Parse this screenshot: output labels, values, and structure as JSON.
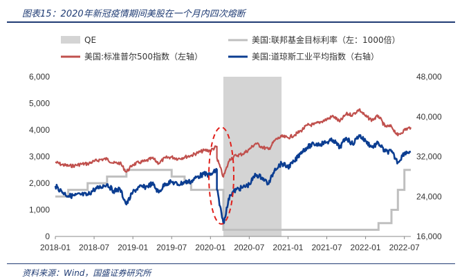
{
  "header": {
    "title": "图表15：2020年新冠疫情期间美股在一个月内四次熔断"
  },
  "footer": {
    "source": "资料来源：Wind，国盛证券研究所"
  },
  "colors": {
    "qe": "#d4d4d4",
    "fed_rate": "#bfbfbf",
    "spx": "#c0504d",
    "dji": "#0b3d91",
    "annotation": "#e0201b",
    "frame": "#1f3b73"
  },
  "chart_data": {
    "type": "line",
    "left_axis": {
      "min": 0,
      "max": 6000,
      "ticks": [
        "0",
        "1,000",
        "2,000",
        "3,000",
        "4,000",
        "5,000",
        "6,000"
      ]
    },
    "right_axis": {
      "min": 16000,
      "max": 48000,
      "ticks": [
        "16,000",
        "24,000",
        "32,000",
        "40,000",
        "48,000"
      ]
    },
    "x_axis": {
      "ticks": [
        "2018-01",
        "2018-07",
        "2019-01",
        "2019-07",
        "2020-01",
        "2020-07",
        "2021-01",
        "2021-07",
        "2022-01",
        "2022-07"
      ]
    },
    "legend": [
      {
        "key": "qe",
        "label": "QE"
      },
      {
        "key": "fed_rate",
        "label": "美国:联邦基金目标利率（左：1000倍）"
      },
      {
        "key": "spx",
        "label": "美国:标准普尔500指数（左轴）"
      },
      {
        "key": "dji",
        "label": "美国:道琼斯工业平均指数（右轴）"
      }
    ],
    "qe_period": {
      "start": "2020-03",
      "end": "2020-12"
    },
    "annotation": {
      "shape": "ellipse",
      "style": "dashed",
      "date": "2020-03",
      "note": "four circuit breakers"
    },
    "series": [
      {
        "key": "fed_rate",
        "name": "美国:联邦基金目标利率（左：1000倍）",
        "axis": "left",
        "points": [
          [
            "2018-01",
            1500
          ],
          [
            "2018-03",
            1500
          ],
          [
            "2018-03",
            1750
          ],
          [
            "2018-06",
            1750
          ],
          [
            "2018-06",
            2000
          ],
          [
            "2018-09",
            2000
          ],
          [
            "2018-09",
            2250
          ],
          [
            "2018-12",
            2250
          ],
          [
            "2018-12",
            2500
          ],
          [
            "2019-07",
            2500
          ],
          [
            "2019-07",
            2250
          ],
          [
            "2019-09",
            2250
          ],
          [
            "2019-09",
            2000
          ],
          [
            "2019-10",
            2000
          ],
          [
            "2019-10",
            1750
          ],
          [
            "2020-03",
            1750
          ],
          [
            "2020-03",
            250
          ],
          [
            "2022-03",
            250
          ],
          [
            "2022-03",
            500
          ],
          [
            "2022-05",
            500
          ],
          [
            "2022-05",
            1000
          ],
          [
            "2022-06",
            1000
          ],
          [
            "2022-06",
            1750
          ],
          [
            "2022-07",
            1750
          ],
          [
            "2022-07",
            2500
          ],
          [
            "2022-08",
            2500
          ]
        ]
      },
      {
        "key": "spx",
        "name": "美国:标准普尔500指数（左轴）",
        "axis": "left",
        "points": [
          [
            "2018-01",
            2790
          ],
          [
            "2018-02",
            2700
          ],
          [
            "2018-03",
            2650
          ],
          [
            "2018-04",
            2660
          ],
          [
            "2018-05",
            2720
          ],
          [
            "2018-06",
            2730
          ],
          [
            "2018-07",
            2820
          ],
          [
            "2018-08",
            2890
          ],
          [
            "2018-09",
            2910
          ],
          [
            "2018-10",
            2750
          ],
          [
            "2018-11",
            2760
          ],
          [
            "2018-12",
            2420
          ],
          [
            "2019-01",
            2700
          ],
          [
            "2019-02",
            2780
          ],
          [
            "2019-03",
            2830
          ],
          [
            "2019-04",
            2940
          ],
          [
            "2019-05",
            2750
          ],
          [
            "2019-06",
            2950
          ],
          [
            "2019-07",
            2980
          ],
          [
            "2019-08",
            2920
          ],
          [
            "2019-09",
            2980
          ],
          [
            "2019-10",
            3040
          ],
          [
            "2019-11",
            3140
          ],
          [
            "2019-12",
            3230
          ],
          [
            "2020-01",
            3230
          ],
          [
            "2020-02",
            3380
          ],
          [
            "2020-02",
            2950
          ],
          [
            "2020-03",
            2237
          ],
          [
            "2020-04",
            2910
          ],
          [
            "2020-05",
            3040
          ],
          [
            "2020-06",
            3100
          ],
          [
            "2020-07",
            3270
          ],
          [
            "2020-08",
            3500
          ],
          [
            "2020-09",
            3360
          ],
          [
            "2020-10",
            3270
          ],
          [
            "2020-11",
            3620
          ],
          [
            "2020-12",
            3750
          ],
          [
            "2021-01",
            3710
          ],
          [
            "2021-02",
            3810
          ],
          [
            "2021-03",
            3970
          ],
          [
            "2021-04",
            4180
          ],
          [
            "2021-05",
            4200
          ],
          [
            "2021-06",
            4300
          ],
          [
            "2021-07",
            4400
          ],
          [
            "2021-08",
            4520
          ],
          [
            "2021-09",
            4310
          ],
          [
            "2021-10",
            4600
          ],
          [
            "2021-11",
            4570
          ],
          [
            "2021-12",
            4770
          ],
          [
            "2022-01",
            4515
          ],
          [
            "2022-02",
            4370
          ],
          [
            "2022-03",
            4530
          ],
          [
            "2022-04",
            4130
          ],
          [
            "2022-05",
            4130
          ],
          [
            "2022-06",
            3790
          ],
          [
            "2022-07",
            4000
          ],
          [
            "2022-08",
            4100
          ]
        ]
      },
      {
        "key": "dji",
        "name": "美国:道琼斯工业平均指数（右轴）",
        "axis": "right",
        "points": [
          [
            "2018-01",
            26100
          ],
          [
            "2018-02",
            25000
          ],
          [
            "2018-03",
            24100
          ],
          [
            "2018-04",
            24200
          ],
          [
            "2018-05",
            24400
          ],
          [
            "2018-06",
            24300
          ],
          [
            "2018-07",
            25400
          ],
          [
            "2018-08",
            25900
          ],
          [
            "2018-09",
            26500
          ],
          [
            "2018-10",
            25100
          ],
          [
            "2018-11",
            25500
          ],
          [
            "2018-12",
            22400
          ],
          [
            "2019-01",
            24900
          ],
          [
            "2019-02",
            25900
          ],
          [
            "2019-03",
            25900
          ],
          [
            "2019-04",
            26600
          ],
          [
            "2019-05",
            24800
          ],
          [
            "2019-06",
            26600
          ],
          [
            "2019-07",
            26900
          ],
          [
            "2019-08",
            26400
          ],
          [
            "2019-09",
            26900
          ],
          [
            "2019-10",
            27000
          ],
          [
            "2019-11",
            28000
          ],
          [
            "2019-12",
            28500
          ],
          [
            "2020-01",
            28300
          ],
          [
            "2020-02",
            29400
          ],
          [
            "2020-02",
            25400
          ],
          [
            "2020-03",
            18600
          ],
          [
            "2020-04",
            24300
          ],
          [
            "2020-05",
            25400
          ],
          [
            "2020-06",
            25800
          ],
          [
            "2020-07",
            26400
          ],
          [
            "2020-08",
            28400
          ],
          [
            "2020-09",
            27800
          ],
          [
            "2020-10",
            26500
          ],
          [
            "2020-11",
            29600
          ],
          [
            "2020-12",
            30600
          ],
          [
            "2021-01",
            29900
          ],
          [
            "2021-02",
            31000
          ],
          [
            "2021-03",
            32900
          ],
          [
            "2021-04",
            33900
          ],
          [
            "2021-05",
            34500
          ],
          [
            "2021-06",
            34500
          ],
          [
            "2021-07",
            34900
          ],
          [
            "2021-08",
            35300
          ],
          [
            "2021-09",
            33800
          ],
          [
            "2021-10",
            35800
          ],
          [
            "2021-11",
            34500
          ],
          [
            "2021-12",
            36300
          ],
          [
            "2022-01",
            35100
          ],
          [
            "2022-02",
            33900
          ],
          [
            "2022-03",
            34700
          ],
          [
            "2022-04",
            33000
          ],
          [
            "2022-05",
            33000
          ],
          [
            "2022-06",
            30800
          ],
          [
            "2022-07",
            32800
          ],
          [
            "2022-08",
            33000
          ]
        ]
      }
    ]
  }
}
